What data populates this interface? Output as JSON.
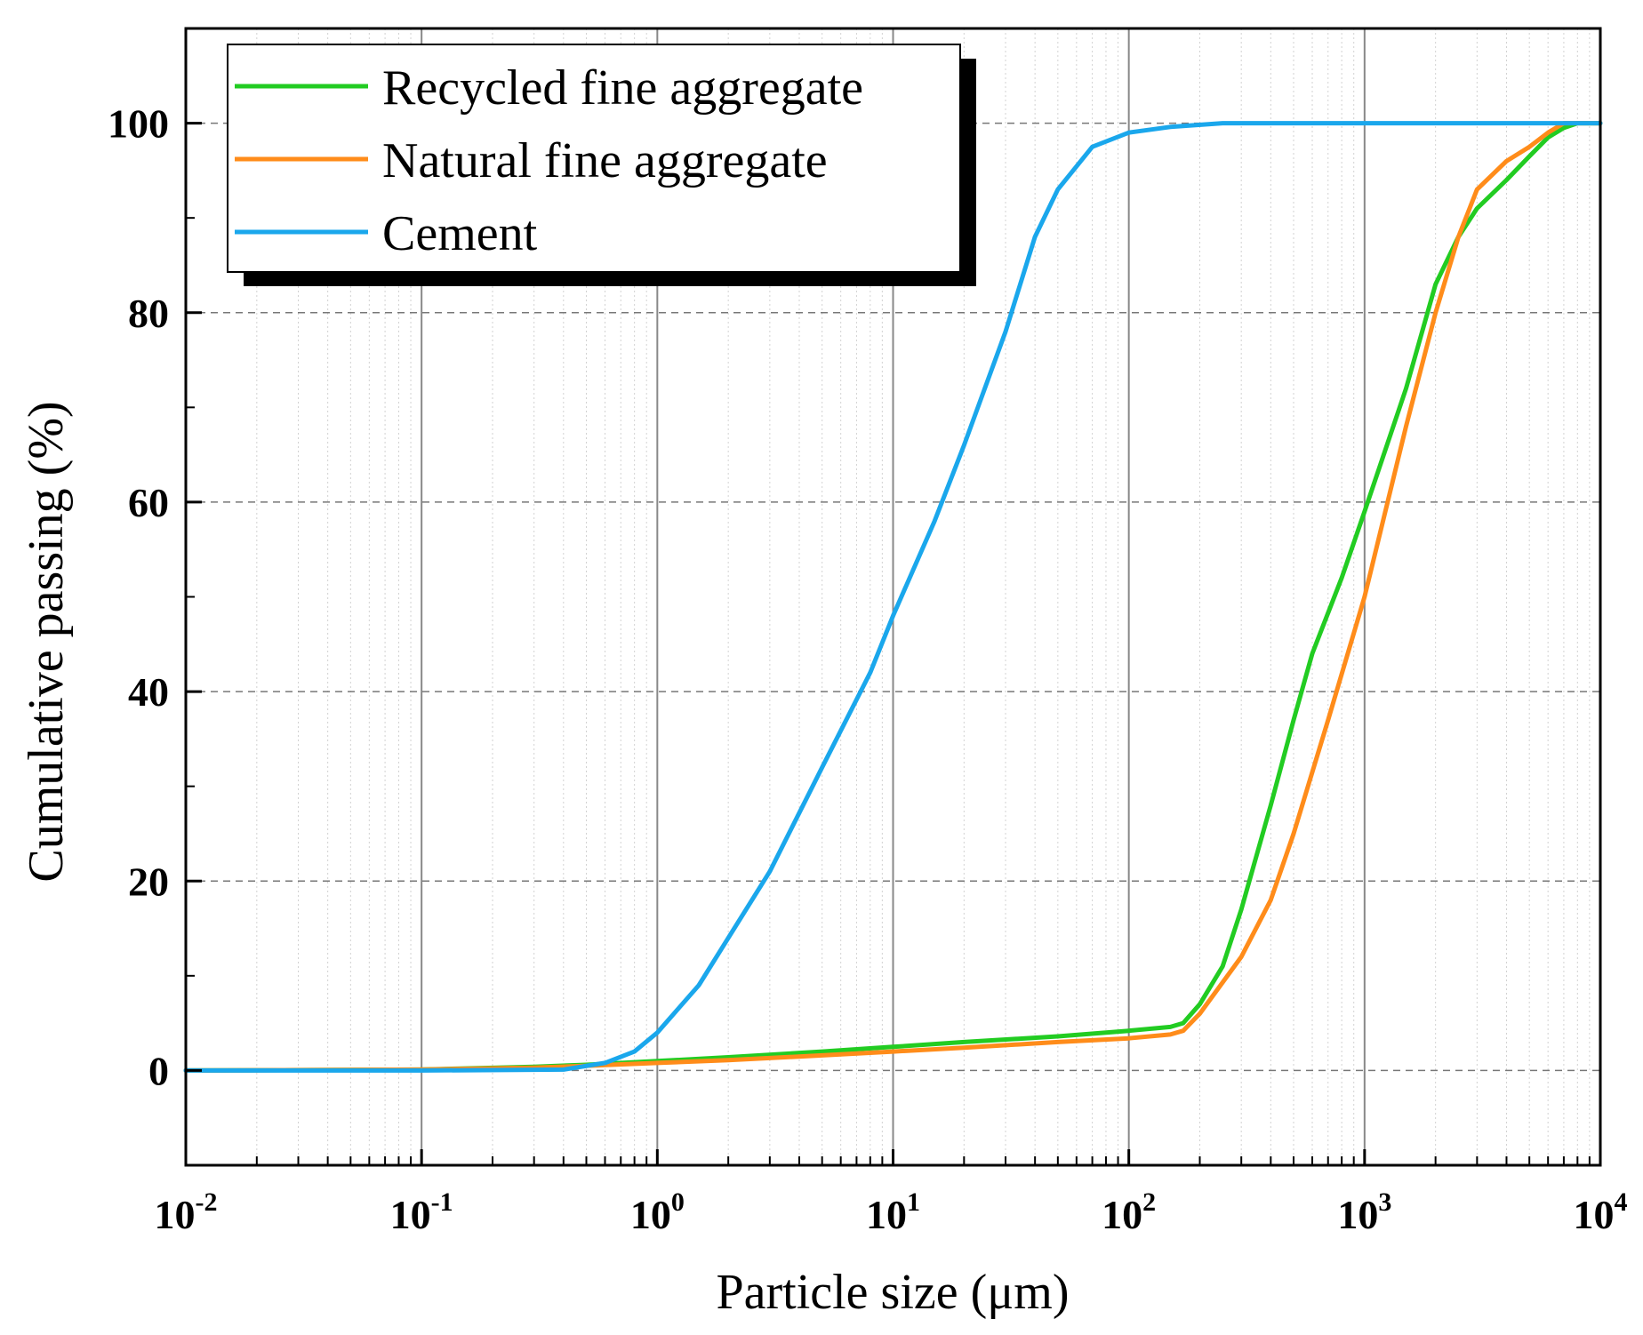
{
  "chart_data": {
    "type": "line",
    "title": "",
    "xlabel": "Particle size (μm)",
    "ylabel": "Cumulative passing (%)",
    "xscale": "log",
    "xlim": [
      0.01,
      10000
    ],
    "ylim": [
      -10,
      110
    ],
    "grid": true,
    "legend_position": "top-left",
    "x_ticks": [
      {
        "base": "10",
        "exp": "-2"
      },
      {
        "base": "10",
        "exp": "-1"
      },
      {
        "base": "10",
        "exp": "0"
      },
      {
        "base": "10",
        "exp": "1"
      },
      {
        "base": "10",
        "exp": "2"
      },
      {
        "base": "10",
        "exp": "3"
      },
      {
        "base": "10",
        "exp": "4"
      }
    ],
    "y_ticks": [
      "0",
      "20",
      "40",
      "60",
      "80",
      "100"
    ],
    "series": [
      {
        "name": "Recycled fine aggregate",
        "color": "#22cc22",
        "x": [
          0.01,
          0.1,
          0.3,
          0.5,
          1,
          2,
          5,
          10,
          20,
          50,
          100,
          150,
          170,
          200,
          250,
          300,
          400,
          500,
          600,
          800,
          1000,
          1500,
          2000,
          2500,
          3000,
          4000,
          5000,
          6000,
          7000,
          8000,
          10000
        ],
        "y": [
          0,
          0.1,
          0.4,
          0.6,
          1.0,
          1.4,
          2.0,
          2.5,
          3.0,
          3.6,
          4.2,
          4.6,
          5.0,
          7.0,
          11.0,
          17.0,
          28.0,
          37.0,
          44.0,
          52.0,
          59.0,
          72.0,
          83.0,
          88.0,
          91.0,
          94.0,
          96.5,
          98.5,
          99.5,
          100,
          100
        ]
      },
      {
        "name": "Natural fine aggregate",
        "color": "#ff8c1a",
        "x": [
          0.01,
          0.1,
          0.3,
          0.5,
          1,
          2,
          5,
          10,
          20,
          50,
          100,
          150,
          170,
          200,
          300,
          400,
          500,
          700,
          1000,
          1500,
          2000,
          2500,
          3000,
          4000,
          5000,
          6000,
          7000,
          8000,
          10000
        ],
        "y": [
          0,
          0.1,
          0.3,
          0.5,
          0.8,
          1.1,
          1.6,
          2.0,
          2.4,
          3.0,
          3.4,
          3.8,
          4.2,
          6.0,
          12.0,
          18.0,
          25.0,
          37.0,
          50.0,
          68.0,
          80.0,
          88.0,
          93.0,
          96.0,
          97.5,
          99.0,
          100,
          100,
          100
        ]
      },
      {
        "name": "Cement",
        "color": "#1aa7ec",
        "x": [
          0.01,
          0.1,
          0.4,
          0.6,
          0.8,
          1.0,
          1.5,
          2,
          3,
          5,
          8,
          10,
          15,
          20,
          30,
          40,
          50,
          70,
          100,
          150,
          250,
          500,
          1000,
          10000
        ],
        "y": [
          0,
          0,
          0.1,
          0.8,
          2.0,
          4.0,
          9.0,
          14.0,
          21.0,
          32.0,
          42.0,
          48.0,
          58.0,
          66.0,
          78.0,
          88.0,
          93.0,
          97.5,
          99.0,
          99.6,
          100,
          100,
          100,
          100
        ]
      }
    ]
  }
}
